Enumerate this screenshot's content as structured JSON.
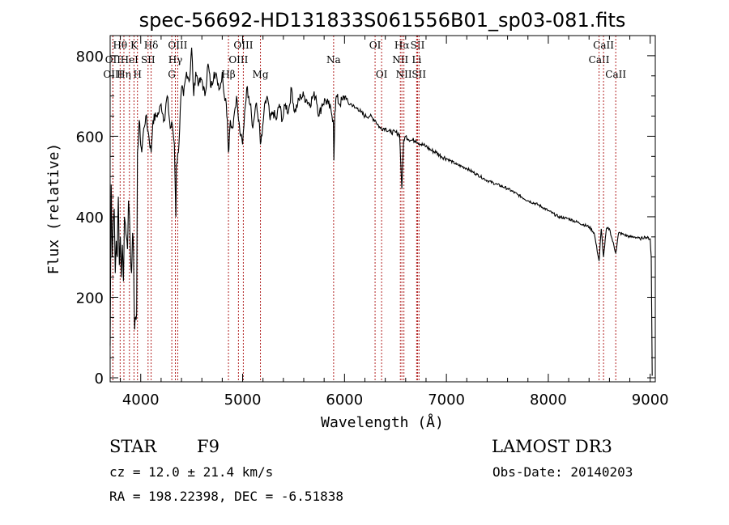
{
  "chart_data": {
    "type": "line",
    "title": "spec-56692-HD131833S061556B01_sp03-081.fits",
    "xlabel": "Wavelength (Å)",
    "ylabel": "Flux (relative)",
    "xlim": [
      3700,
      9050
    ],
    "ylim": [
      -10,
      850
    ],
    "xticks": [
      4000,
      5000,
      6000,
      7000,
      8000,
      9000
    ],
    "yticks": [
      0,
      200,
      400,
      600,
      800
    ],
    "grid": false,
    "series": [
      {
        "name": "spectrum",
        "color": "#000000",
        "x": [
          3700,
          3710,
          3720,
          3730,
          3740,
          3750,
          3760,
          3770,
          3780,
          3790,
          3800,
          3810,
          3820,
          3830,
          3840,
          3850,
          3860,
          3870,
          3880,
          3890,
          3900,
          3910,
          3920,
          3930,
          3935,
          3940,
          3950,
          3960,
          3968,
          3975,
          3985,
          3995,
          4010,
          4030,
          4050,
          4080,
          4102,
          4120,
          4150,
          4180,
          4200,
          4230,
          4260,
          4290,
          4310,
          4330,
          4340,
          4345,
          4350,
          4370,
          4400,
          4420,
          4450,
          4480,
          4500,
          4520,
          4540,
          4570,
          4600,
          4630,
          4660,
          4690,
          4720,
          4750,
          4780,
          4800,
          4820,
          4840,
          4850,
          4861,
          4870,
          4880,
          4900,
          4920,
          4940,
          4960,
          4980,
          5000,
          5020,
          5040,
          5060,
          5080,
          5100,
          5130,
          5160,
          5175,
          5190,
          5210,
          5240,
          5270,
          5300,
          5330,
          5360,
          5390,
          5420,
          5450,
          5480,
          5510,
          5540,
          5570,
          5600,
          5630,
          5660,
          5690,
          5720,
          5750,
          5780,
          5810,
          5840,
          5870,
          5890,
          5896,
          5905,
          5920,
          5950,
          5980,
          6010,
          6040,
          6070,
          6100,
          6130,
          6160,
          6200,
          6250,
          6300,
          6350,
          6400,
          6450,
          6500,
          6540,
          6563,
          6580,
          6600,
          6650,
          6700,
          6750,
          6800,
          6850,
          6900,
          6950,
          7000,
          7100,
          7200,
          7300,
          7400,
          7500,
          7600,
          7700,
          7800,
          7900,
          8000,
          8100,
          8200,
          8300,
          8400,
          8450,
          8498,
          8520,
          8542,
          8570,
          8600,
          8662,
          8690,
          8750,
          8800,
          8850,
          8900,
          8950,
          9000,
          9010,
          9020
        ],
        "y": [
          80,
          480,
          300,
          390,
          420,
          260,
          340,
          300,
          450,
          280,
          350,
          250,
          330,
          240,
          400,
          380,
          350,
          320,
          440,
          400,
          300,
          260,
          360,
          310,
          180,
          120,
          150,
          160,
          560,
          580,
          640,
          600,
          560,
          620,
          650,
          600,
          560,
          640,
          650,
          660,
          680,
          640,
          700,
          620,
          630,
          580,
          460,
          400,
          530,
          560,
          720,
          700,
          760,
          740,
          820,
          700,
          760,
          730,
          740,
          700,
          780,
          720,
          760,
          740,
          720,
          760,
          700,
          680,
          640,
          560,
          600,
          640,
          620,
          660,
          700,
          640,
          600,
          580,
          660,
          720,
          700,
          680,
          620,
          680,
          640,
          580,
          600,
          660,
          700,
          640,
          660,
          640,
          680,
          640,
          680,
          660,
          720,
          660,
          680,
          700,
          700,
          690,
          680,
          700,
          700,
          650,
          680,
          690,
          680,
          660,
          640,
          540,
          660,
          700,
          680,
          690,
          700,
          680,
          680,
          670,
          670,
          660,
          650,
          650,
          640,
          620,
          620,
          610,
          610,
          605,
          470,
          590,
          600,
          590,
          590,
          580,
          575,
          565,
          560,
          550,
          545,
          530,
          520,
          505,
          490,
          480,
          470,
          455,
          440,
          430,
          415,
          400,
          395,
          385,
          375,
          360,
          290,
          370,
          300,
          370,
          370,
          310,
          360,
          355,
          350,
          350,
          345,
          350,
          345,
          300,
          5
        ]
      }
    ],
    "lines": [
      {
        "name": "OII",
        "x": 3727,
        "label": "OII",
        "row": 1
      },
      {
        "name": "OIII",
        "x": 3727,
        "label": "OIII",
        "row": 2
      },
      {
        "name": "Hθ",
        "x": 3798,
        "label": "Hθ",
        "row": 0
      },
      {
        "name": "Hη",
        "x": 3835,
        "label": "Hη",
        "row": 2
      },
      {
        "name": "HeI",
        "x": 3889,
        "label": "HeI",
        "row": 1
      },
      {
        "name": "K",
        "x": 3934,
        "label": "K",
        "row": 0
      },
      {
        "name": "H",
        "x": 3968,
        "label": "H",
        "row": 2
      },
      {
        "name": "Hδ",
        "x": 4102,
        "label": "Hδ",
        "row": 0
      },
      {
        "name": "SII",
        "x": 4072,
        "label": "SII",
        "row": 1
      },
      {
        "name": "G",
        "x": 4305,
        "label": "G",
        "row": 2
      },
      {
        "name": "OIII_4363",
        "x": 4363,
        "label": "OIII",
        "row": 0
      },
      {
        "name": "Hγ",
        "x": 4340,
        "label": "Hγ",
        "row": 1
      },
      {
        "name": "Hβ",
        "x": 4861,
        "label": "Hβ",
        "row": 2
      },
      {
        "name": "OIII_4959",
        "x": 4959,
        "label": "OIII",
        "row": 1
      },
      {
        "name": "OIII_5007",
        "x": 5007,
        "label": "OIII",
        "row": 0
      },
      {
        "name": "Mg",
        "x": 5175,
        "label": "Mg",
        "row": 2
      },
      {
        "name": "Na",
        "x": 5893,
        "label": "Na",
        "row": 1
      },
      {
        "name": "OI_6300",
        "x": 6300,
        "label": "OI",
        "row": 0
      },
      {
        "name": "OI_6364",
        "x": 6364,
        "label": "OI",
        "row": 2
      },
      {
        "name": "NII_6548",
        "x": 6548,
        "label": "NII",
        "row": 1
      },
      {
        "name": "Hα",
        "x": 6563,
        "label": "Hα",
        "row": 0
      },
      {
        "name": "NII_6583",
        "x": 6583,
        "label": "NII",
        "row": 2
      },
      {
        "name": "Li",
        "x": 6708,
        "label": "Li",
        "row": 1
      },
      {
        "name": "SII_6717",
        "x": 6717,
        "label": "SII",
        "row": 0
      },
      {
        "name": "SII_6731",
        "x": 6731,
        "label": "SII",
        "row": 2
      },
      {
        "name": "CaII_8498",
        "x": 8498,
        "label": "CaII",
        "row": 1
      },
      {
        "name": "CaII_8542",
        "x": 8542,
        "label": "CaII",
        "row": 0
      },
      {
        "name": "CaII_8662",
        "x": 8662,
        "label": "CaII",
        "row": 2
      }
    ]
  },
  "info": {
    "class": "STAR",
    "subclass": "F9",
    "survey": "LAMOST DR3",
    "cz": "cz = 12.0 ± 21.4 km/s",
    "obs_date": "Obs-Date: 20140203",
    "radec": "RA = 198.22398, DEC =  -6.51838"
  },
  "colors": {
    "line_marker": "#b22222",
    "spectrum": "#000000"
  }
}
